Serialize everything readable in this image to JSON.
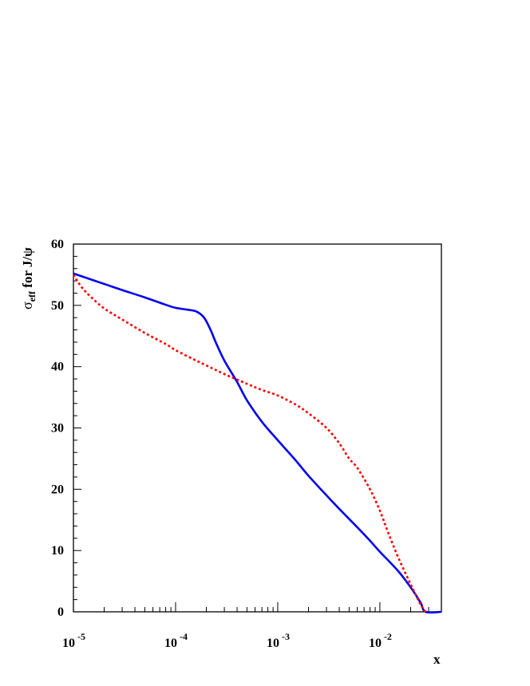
{
  "chart_data": {
    "type": "line",
    "xscale": "log",
    "xlim": [
      1e-05,
      0.04
    ],
    "ylim": [
      0,
      60
    ],
    "yticks": [
      0,
      10,
      20,
      30,
      40,
      50,
      60
    ],
    "xticks": [
      {
        "value": 1e-05,
        "base": "10",
        "exp": "-5"
      },
      {
        "value": 0.0001,
        "base": "10",
        "exp": "-4"
      },
      {
        "value": 0.001,
        "base": "10",
        "exp": "-3"
      },
      {
        "value": 0.01,
        "base": "10",
        "exp": "-2"
      }
    ],
    "xlabel": "x",
    "ylabel": {
      "sigma": "σ",
      "sub": "eff",
      "rest": " for J/ψ"
    },
    "series": [
      {
        "style": "solid",
        "color": "#0000ee",
        "points": [
          [
            1e-05,
            55.2
          ],
          [
            2e-05,
            53.5
          ],
          [
            3e-05,
            52.5
          ],
          [
            5e-05,
            51.3
          ],
          [
            8e-05,
            50.1
          ],
          [
            0.0001,
            49.6
          ],
          [
            0.00013,
            49.3
          ],
          [
            0.00016,
            49.0
          ],
          [
            0.00019,
            48.0
          ],
          [
            0.00022,
            46.0
          ],
          [
            0.00025,
            43.8
          ],
          [
            0.0003,
            41.0
          ],
          [
            0.0004,
            37.5
          ],
          [
            0.0005,
            34.5
          ],
          [
            0.0007,
            31.0
          ],
          [
            0.001,
            28.0
          ],
          [
            0.0015,
            24.7
          ],
          [
            0.002,
            22.2
          ],
          [
            0.003,
            19.0
          ],
          [
            0.004,
            16.8
          ],
          [
            0.006,
            13.8
          ],
          [
            0.008,
            11.6
          ],
          [
            0.01,
            9.8
          ],
          [
            0.015,
            6.7
          ],
          [
            0.02,
            4.0
          ],
          [
            0.025,
            1.5
          ],
          [
            0.028,
            0.0
          ],
          [
            0.04,
            0.0
          ]
        ]
      },
      {
        "style": "dotted",
        "color": "#ff0000",
        "points": [
          [
            1e-05,
            55.0
          ],
          [
            1.2e-05,
            53.0
          ],
          [
            1.5e-05,
            51.3
          ],
          [
            2e-05,
            49.5
          ],
          [
            3e-05,
            47.7
          ],
          [
            5e-05,
            45.5
          ],
          [
            8e-05,
            43.7
          ],
          [
            0.0001,
            42.7
          ],
          [
            0.00015,
            41.2
          ],
          [
            0.0002,
            40.2
          ],
          [
            0.0003,
            38.8
          ],
          [
            0.0005,
            37.2
          ],
          [
            0.0007,
            36.2
          ],
          [
            0.001,
            35.3
          ],
          [
            0.0015,
            33.8
          ],
          [
            0.002,
            32.4
          ],
          [
            0.003,
            30.0
          ],
          [
            0.004,
            27.5
          ],
          [
            0.005,
            25.0
          ],
          [
            0.006,
            23.5
          ],
          [
            0.008,
            20.0
          ],
          [
            0.01,
            16.5
          ],
          [
            0.012,
            13.0
          ],
          [
            0.015,
            9.0
          ],
          [
            0.02,
            4.5
          ],
          [
            0.025,
            1.2
          ],
          [
            0.028,
            0.0
          ]
        ]
      }
    ]
  }
}
